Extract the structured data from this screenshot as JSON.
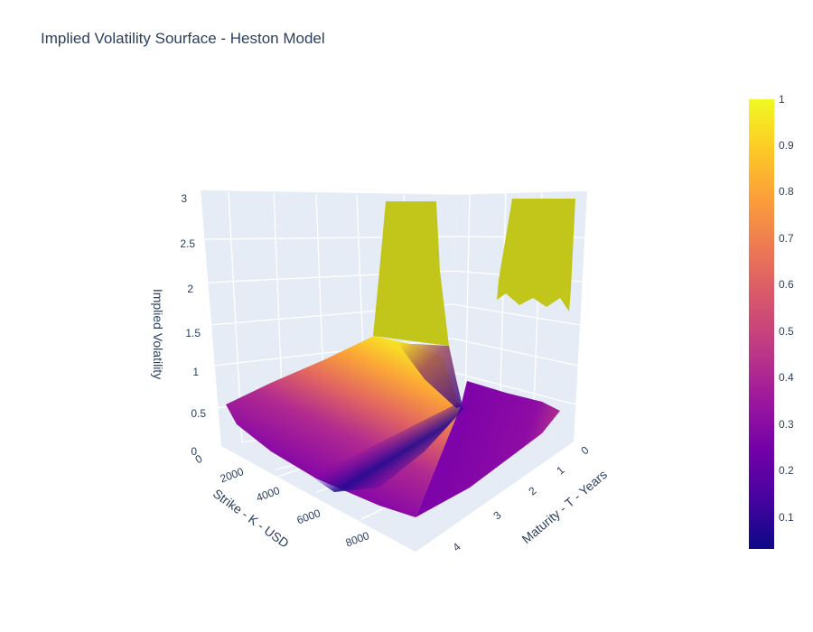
{
  "chart_data": {
    "type": "surface",
    "title": "Implied Volatility Sourface - Heston Model",
    "x_axis": {
      "title": "Strike - K - USD",
      "ticks": [
        "0",
        "2000",
        "4000",
        "6000",
        "8000"
      ],
      "range": [
        0,
        9000
      ]
    },
    "y_axis": {
      "title": "Maturity - T - Years",
      "ticks": [
        "0",
        "1",
        "2",
        "3",
        "4"
      ],
      "range": [
        0,
        4.5
      ]
    },
    "z_axis": {
      "title": "Implied Volatility",
      "ticks": [
        "0",
        "0.5",
        "1",
        "1.5",
        "2",
        "2.5",
        "3"
      ],
      "range": [
        0,
        3
      ]
    },
    "colorscale": "Plasma",
    "colorbar": {
      "ticks": [
        "0.1",
        "0.2",
        "0.3",
        "0.4",
        "0.5",
        "0.6",
        "0.7",
        "0.8",
        "0.9",
        "1"
      ],
      "range": [
        0.03,
        1
      ]
    },
    "grid": true,
    "notes_visible": {
      "cliff_value": 3,
      "clipped_color": "#c2c61b"
    }
  }
}
